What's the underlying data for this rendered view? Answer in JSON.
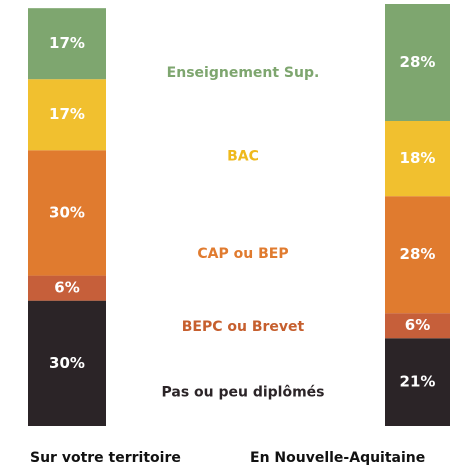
{
  "chart_data": {
    "type": "stacked_bar",
    "categories": [
      "Sur votre territoire",
      "En Nouvelle-Aquitaine"
    ],
    "series": [
      {
        "name": "Pas ou peu diplômés",
        "color": "#2b2427",
        "label_color": "#2b2427",
        "values": [
          30,
          21
        ],
        "value_labels": [
          "30%",
          "21%"
        ]
      },
      {
        "name": "BEPC ou Brevet",
        "color": "#c65f3a",
        "label_color": "#c65f2e",
        "values": [
          6,
          6
        ],
        "value_labels": [
          "6%",
          "6%"
        ]
      },
      {
        "name": "CAP ou BEP",
        "color": "#e07b2f",
        "label_color": "#e07b2f",
        "values": [
          30,
          28
        ],
        "value_labels": [
          "30%",
          "28%"
        ]
      },
      {
        "name": "BAC",
        "color": "#f1c02f",
        "label_color": "#efb91c",
        "values": [
          17,
          18
        ],
        "value_labels": [
          "17%",
          "18%"
        ]
      },
      {
        "name": "Enseignement Sup.",
        "color": "#7ea66f",
        "label_color": "#7ea66f",
        "values": [
          17,
          28
        ],
        "value_labels": [
          "17%",
          "28%"
        ]
      }
    ]
  }
}
